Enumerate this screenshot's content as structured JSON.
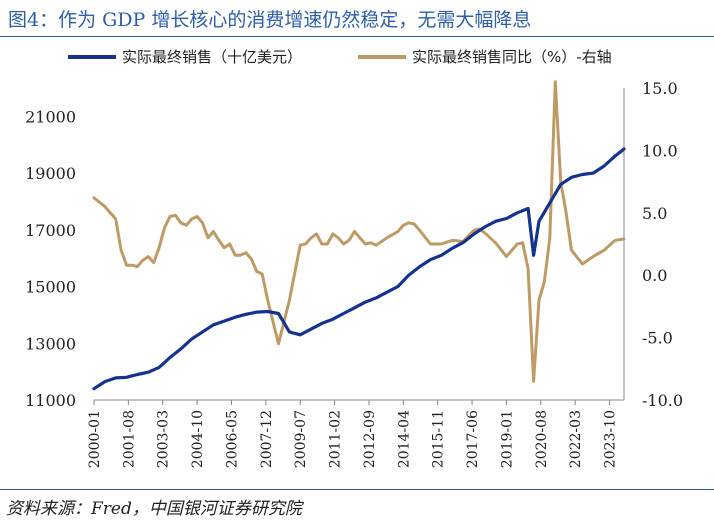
{
  "title": "图4：作为 GDP 增长核心的消费增速仍然稳定，无需大幅降息",
  "source": "资料来源：Fred，中国银河证券研究院",
  "colors": {
    "sales": "#14338f",
    "yoy": "#bf9a66",
    "title": "#2e5fa8"
  },
  "chart_data": {
    "type": "line",
    "title": "图4：作为 GDP 增长核心的消费增速仍然稳定，无需大幅降息",
    "legend_position": "top",
    "grid": false,
    "left_axis": {
      "ylim": [
        11000,
        22000
      ],
      "ticks": [
        11000,
        13000,
        15000,
        17000,
        19000,
        21000
      ]
    },
    "right_axis": {
      "ylim": [
        -10,
        15
      ],
      "ticks": [
        -10.0,
        -5.0,
        0.0,
        5.0,
        10.0,
        15.0
      ]
    },
    "x_tick_labels": [
      "2000-01",
      "2001-08",
      "2003-03",
      "2004-10",
      "2006-05",
      "2007-12",
      "2009-07",
      "2011-02",
      "2012-09",
      "2014-04",
      "2015-11",
      "2017-06",
      "2019-01",
      "2020-08",
      "2022-03",
      "2023-10"
    ],
    "x_range": [
      "2000-01",
      "2024-06"
    ],
    "series": [
      {
        "name": "实际最终销售（十亿美元）",
        "axis": "left",
        "x": [
          "2000-01",
          "2000-07",
          "2001-01",
          "2001-07",
          "2002-01",
          "2002-07",
          "2003-01",
          "2003-07",
          "2004-01",
          "2004-07",
          "2005-01",
          "2005-07",
          "2006-01",
          "2006-07",
          "2007-01",
          "2007-07",
          "2008-01",
          "2008-07",
          "2009-01",
          "2009-07",
          "2010-01",
          "2010-07",
          "2011-01",
          "2011-07",
          "2012-01",
          "2012-07",
          "2013-01",
          "2013-07",
          "2014-01",
          "2014-07",
          "2015-01",
          "2015-07",
          "2016-01",
          "2016-07",
          "2017-01",
          "2017-07",
          "2018-01",
          "2018-07",
          "2019-01",
          "2019-07",
          "2020-01",
          "2020-04",
          "2020-07",
          "2021-01",
          "2021-07",
          "2022-01",
          "2022-07",
          "2023-01",
          "2023-07",
          "2024-01",
          "2024-06"
        ],
        "values": [
          11400,
          11650,
          11780,
          11800,
          11900,
          11980,
          12150,
          12500,
          12800,
          13150,
          13400,
          13650,
          13780,
          13920,
          14020,
          14100,
          14120,
          14050,
          13400,
          13300,
          13500,
          13700,
          13850,
          14050,
          14250,
          14450,
          14600,
          14800,
          15000,
          15400,
          15700,
          15950,
          16100,
          16350,
          16550,
          16850,
          17100,
          17300,
          17400,
          17600,
          17750,
          16100,
          17300,
          17950,
          18600,
          18850,
          18950,
          19000,
          19250,
          19600,
          19850
        ]
      },
      {
        "name": "实际最终销售同比（%）-右轴",
        "axis": "right",
        "x": [
          "2000-01",
          "2000-07",
          "2001-01",
          "2001-04",
          "2001-07",
          "2001-10",
          "2002-01",
          "2002-04",
          "2002-07",
          "2002-10",
          "2003-01",
          "2003-04",
          "2003-07",
          "2003-10",
          "2004-01",
          "2004-04",
          "2004-07",
          "2004-10",
          "2005-01",
          "2005-04",
          "2005-07",
          "2005-10",
          "2006-01",
          "2006-04",
          "2006-07",
          "2006-10",
          "2007-01",
          "2007-04",
          "2007-07",
          "2007-10",
          "2008-01",
          "2008-07",
          "2009-01",
          "2009-07",
          "2009-10",
          "2010-01",
          "2010-04",
          "2010-07",
          "2010-10",
          "2011-01",
          "2011-04",
          "2011-07",
          "2011-10",
          "2012-01",
          "2012-04",
          "2012-07",
          "2012-10",
          "2013-01",
          "2013-07",
          "2014-01",
          "2014-04",
          "2014-07",
          "2014-10",
          "2015-01",
          "2015-07",
          "2016-01",
          "2016-07",
          "2017-01",
          "2017-07",
          "2017-10",
          "2018-01",
          "2018-07",
          "2019-01",
          "2019-07",
          "2019-10",
          "2020-01",
          "2020-04",
          "2020-07",
          "2020-10",
          "2021-01",
          "2021-04",
          "2021-07",
          "2021-10",
          "2022-01",
          "2022-07",
          "2023-01",
          "2023-07",
          "2024-01",
          "2024-06"
        ],
        "values": [
          6.2,
          5.5,
          4.5,
          2.0,
          0.8,
          0.8,
          0.7,
          1.2,
          1.5,
          1.0,
          2.2,
          3.8,
          4.7,
          4.8,
          4.2,
          4.0,
          4.5,
          4.7,
          4.2,
          3.0,
          3.5,
          2.8,
          2.2,
          2.5,
          1.6,
          1.6,
          1.8,
          1.3,
          0.3,
          0.1,
          -2.0,
          -5.5,
          -2.0,
          2.4,
          2.5,
          3.0,
          3.3,
          2.5,
          2.5,
          3.3,
          3.0,
          2.5,
          2.8,
          3.5,
          3.0,
          2.5,
          2.6,
          2.4,
          3.0,
          3.5,
          4.0,
          4.2,
          4.1,
          3.6,
          2.5,
          2.5,
          2.8,
          2.7,
          3.6,
          3.7,
          3.4,
          2.6,
          1.5,
          2.5,
          2.6,
          0.5,
          -8.5,
          -2.0,
          -0.5,
          3.0,
          15.5,
          7.5,
          5.0,
          2.0,
          0.9,
          1.5,
          2.0,
          2.8,
          2.9
        ]
      }
    ]
  }
}
